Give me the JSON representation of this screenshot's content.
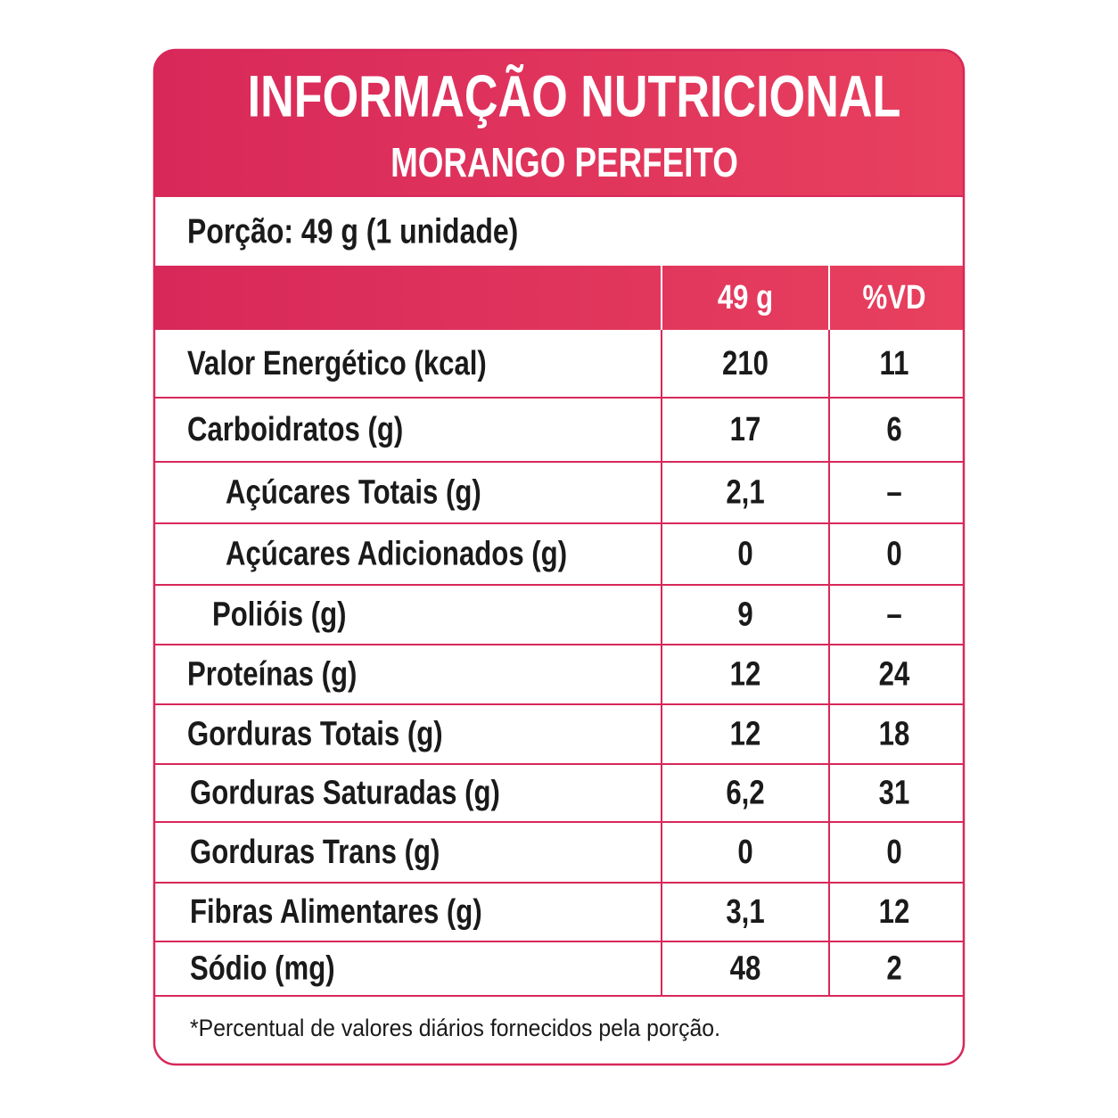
{
  "header": {
    "title": "INFORMAÇÃO NUTRICIONAL",
    "subtitle": "MORANGO PERFEITO"
  },
  "portion": "Porção: 49 g (1 unidade)",
  "table": {
    "columns": [
      "49 g",
      "%VD"
    ],
    "rows": [
      [
        "Valor Energético (kcal)",
        "210",
        "11"
      ],
      [
        "Carboidratos (g)",
        "17",
        "6"
      ],
      [
        "Açúcares Totais (g)",
        "2,1",
        "–"
      ],
      [
        "Açúcares Adicionados (g)",
        "0",
        "0"
      ],
      [
        "Polióis (g)",
        "9",
        "–"
      ],
      [
        "Proteínas (g)",
        "12",
        "24"
      ],
      [
        "Gorduras Totais (g)",
        "12",
        "18"
      ],
      [
        "Gorduras Saturadas (g)",
        "6,2",
        "31"
      ],
      [
        "Gorduras Trans (g)",
        "0",
        "0"
      ],
      [
        "Fibras Alimentares (g)",
        "3,1",
        "12"
      ],
      [
        "Sódio (mg)",
        "48",
        "2"
      ]
    ]
  },
  "footnote": "*Percentual de valores diários fornecidos pela porção."
}
